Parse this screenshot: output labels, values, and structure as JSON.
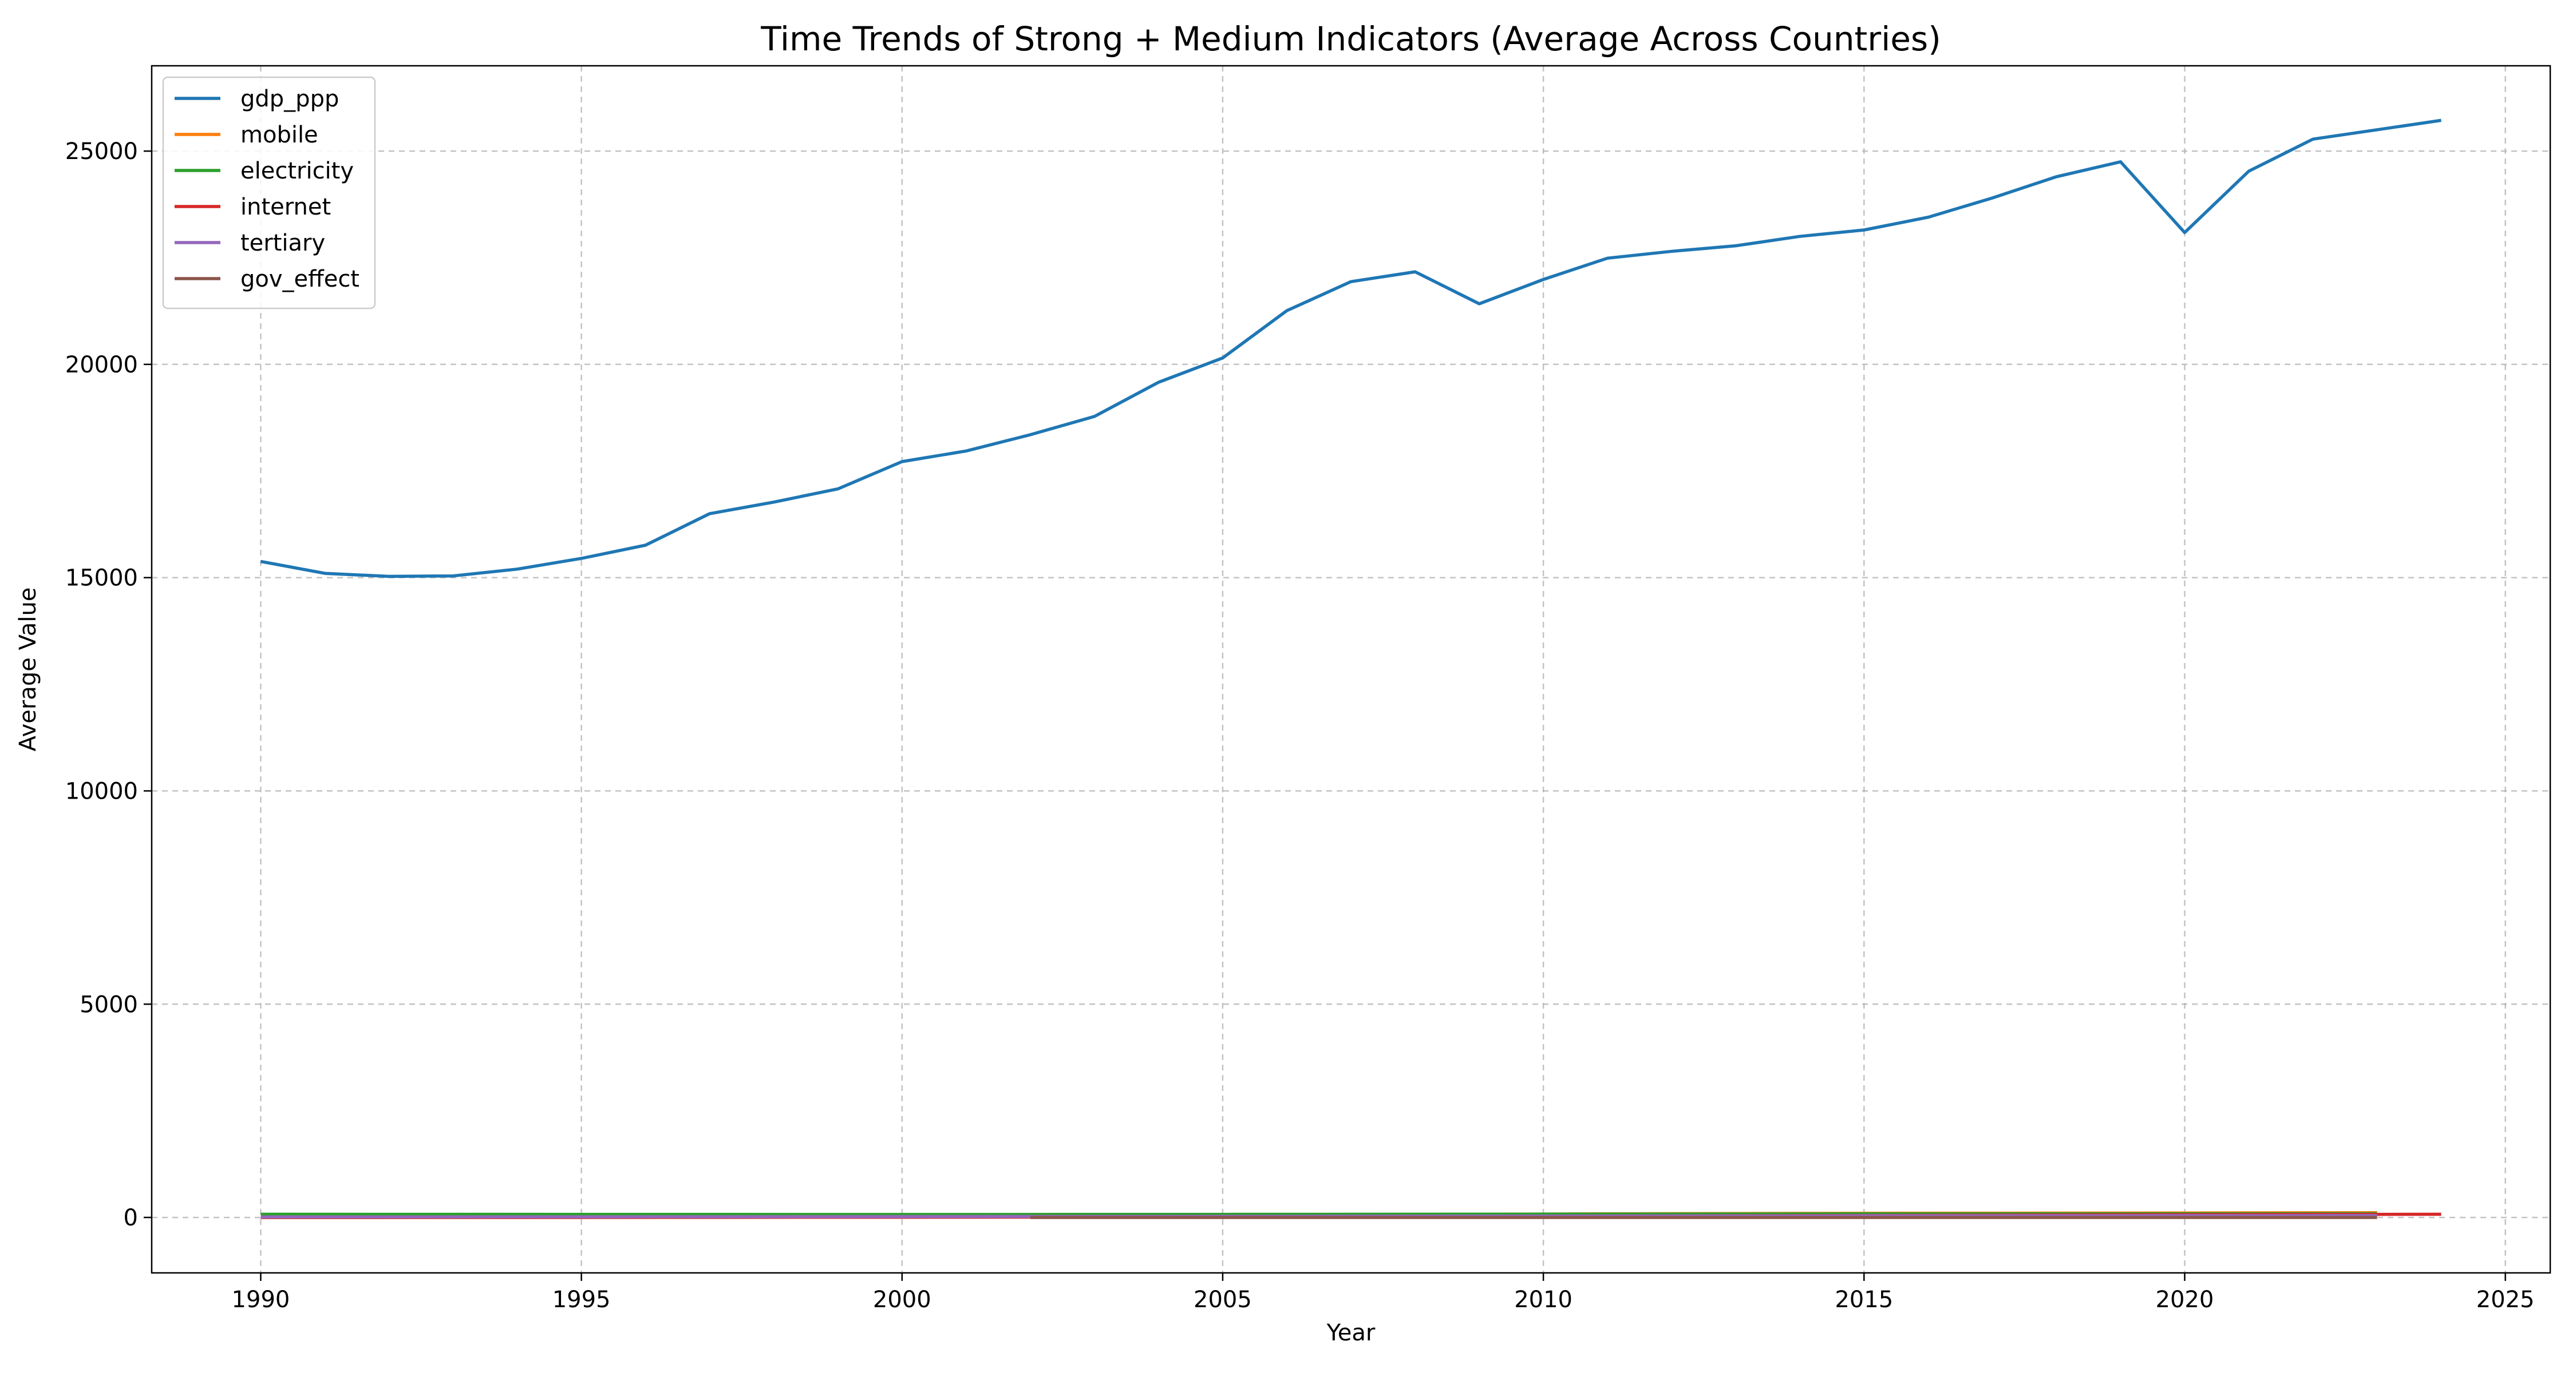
{
  "chart_data": {
    "type": "line",
    "title": "Time Trends of Strong + Medium Indicators (Average Across Countries)",
    "xlabel": "Year",
    "ylabel": "Average Value",
    "xlim": [
      1988.3,
      2025.7
    ],
    "ylim": [
      -1300,
      27000
    ],
    "xticks": [
      1990,
      1995,
      2000,
      2005,
      2010,
      2015,
      2020,
      2025
    ],
    "yticks": [
      0,
      5000,
      10000,
      15000,
      20000,
      25000
    ],
    "grid": true,
    "legend_position": "top-left",
    "series": [
      {
        "name": "gdp_ppp",
        "color": "#1f77b4",
        "x": [
          1990,
          1991,
          1992,
          1993,
          1994,
          1995,
          1996,
          1997,
          1998,
          1999,
          2000,
          2001,
          2002,
          2003,
          2004,
          2005,
          2006,
          2007,
          2008,
          2009,
          2010,
          2011,
          2012,
          2013,
          2014,
          2015,
          2016,
          2017,
          2018,
          2019,
          2020,
          2021,
          2022,
          2023,
          2024
        ],
        "values": [
          15380,
          15100,
          15030,
          15040,
          15200,
          15450,
          15760,
          16500,
          16770,
          17080,
          17720,
          17970,
          18350,
          18780,
          19580,
          20150,
          21260,
          21940,
          22170,
          21420,
          21990,
          22490,
          22650,
          22780,
          23000,
          23150,
          23450,
          23900,
          24400,
          24750,
          23090,
          24530,
          25280,
          25500,
          25720
        ]
      },
      {
        "name": "mobile",
        "color": "#ff7f0e",
        "x": [
          1990,
          1993,
          1996,
          1999,
          2002,
          2005,
          2008,
          2011,
          2014,
          2017,
          2020,
          2022,
          2023
        ],
        "values": [
          0,
          0,
          1,
          5,
          20,
          40,
          70,
          85,
          95,
          100,
          105,
          110,
          112
        ]
      },
      {
        "name": "electricity",
        "color": "#2ca02c",
        "x": [
          1990,
          1995,
          2000,
          2005,
          2010,
          2015,
          2020,
          2023
        ],
        "values": [
          75,
          72,
          70,
          72,
          78,
          84,
          88,
          90
        ]
      },
      {
        "name": "internet",
        "color": "#d62728",
        "x": [
          1990,
          1995,
          2000,
          2005,
          2010,
          2015,
          2020,
          2024
        ],
        "values": [
          0,
          1,
          5,
          15,
          30,
          45,
          65,
          75
        ]
      },
      {
        "name": "tertiary",
        "color": "#9467bd",
        "x": [
          1990,
          1995,
          2000,
          2005,
          2010,
          2015,
          2020,
          2023
        ],
        "values": [
          12,
          14,
          20,
          26,
          32,
          37,
          41,
          43
        ]
      },
      {
        "name": "gov_effect",
        "color": "#8c564b",
        "x": [
          2002,
          2005,
          2010,
          2015,
          2020,
          2023
        ],
        "values": [
          0.1,
          0.1,
          0.05,
          0.05,
          0.02,
          0.02
        ]
      }
    ]
  }
}
